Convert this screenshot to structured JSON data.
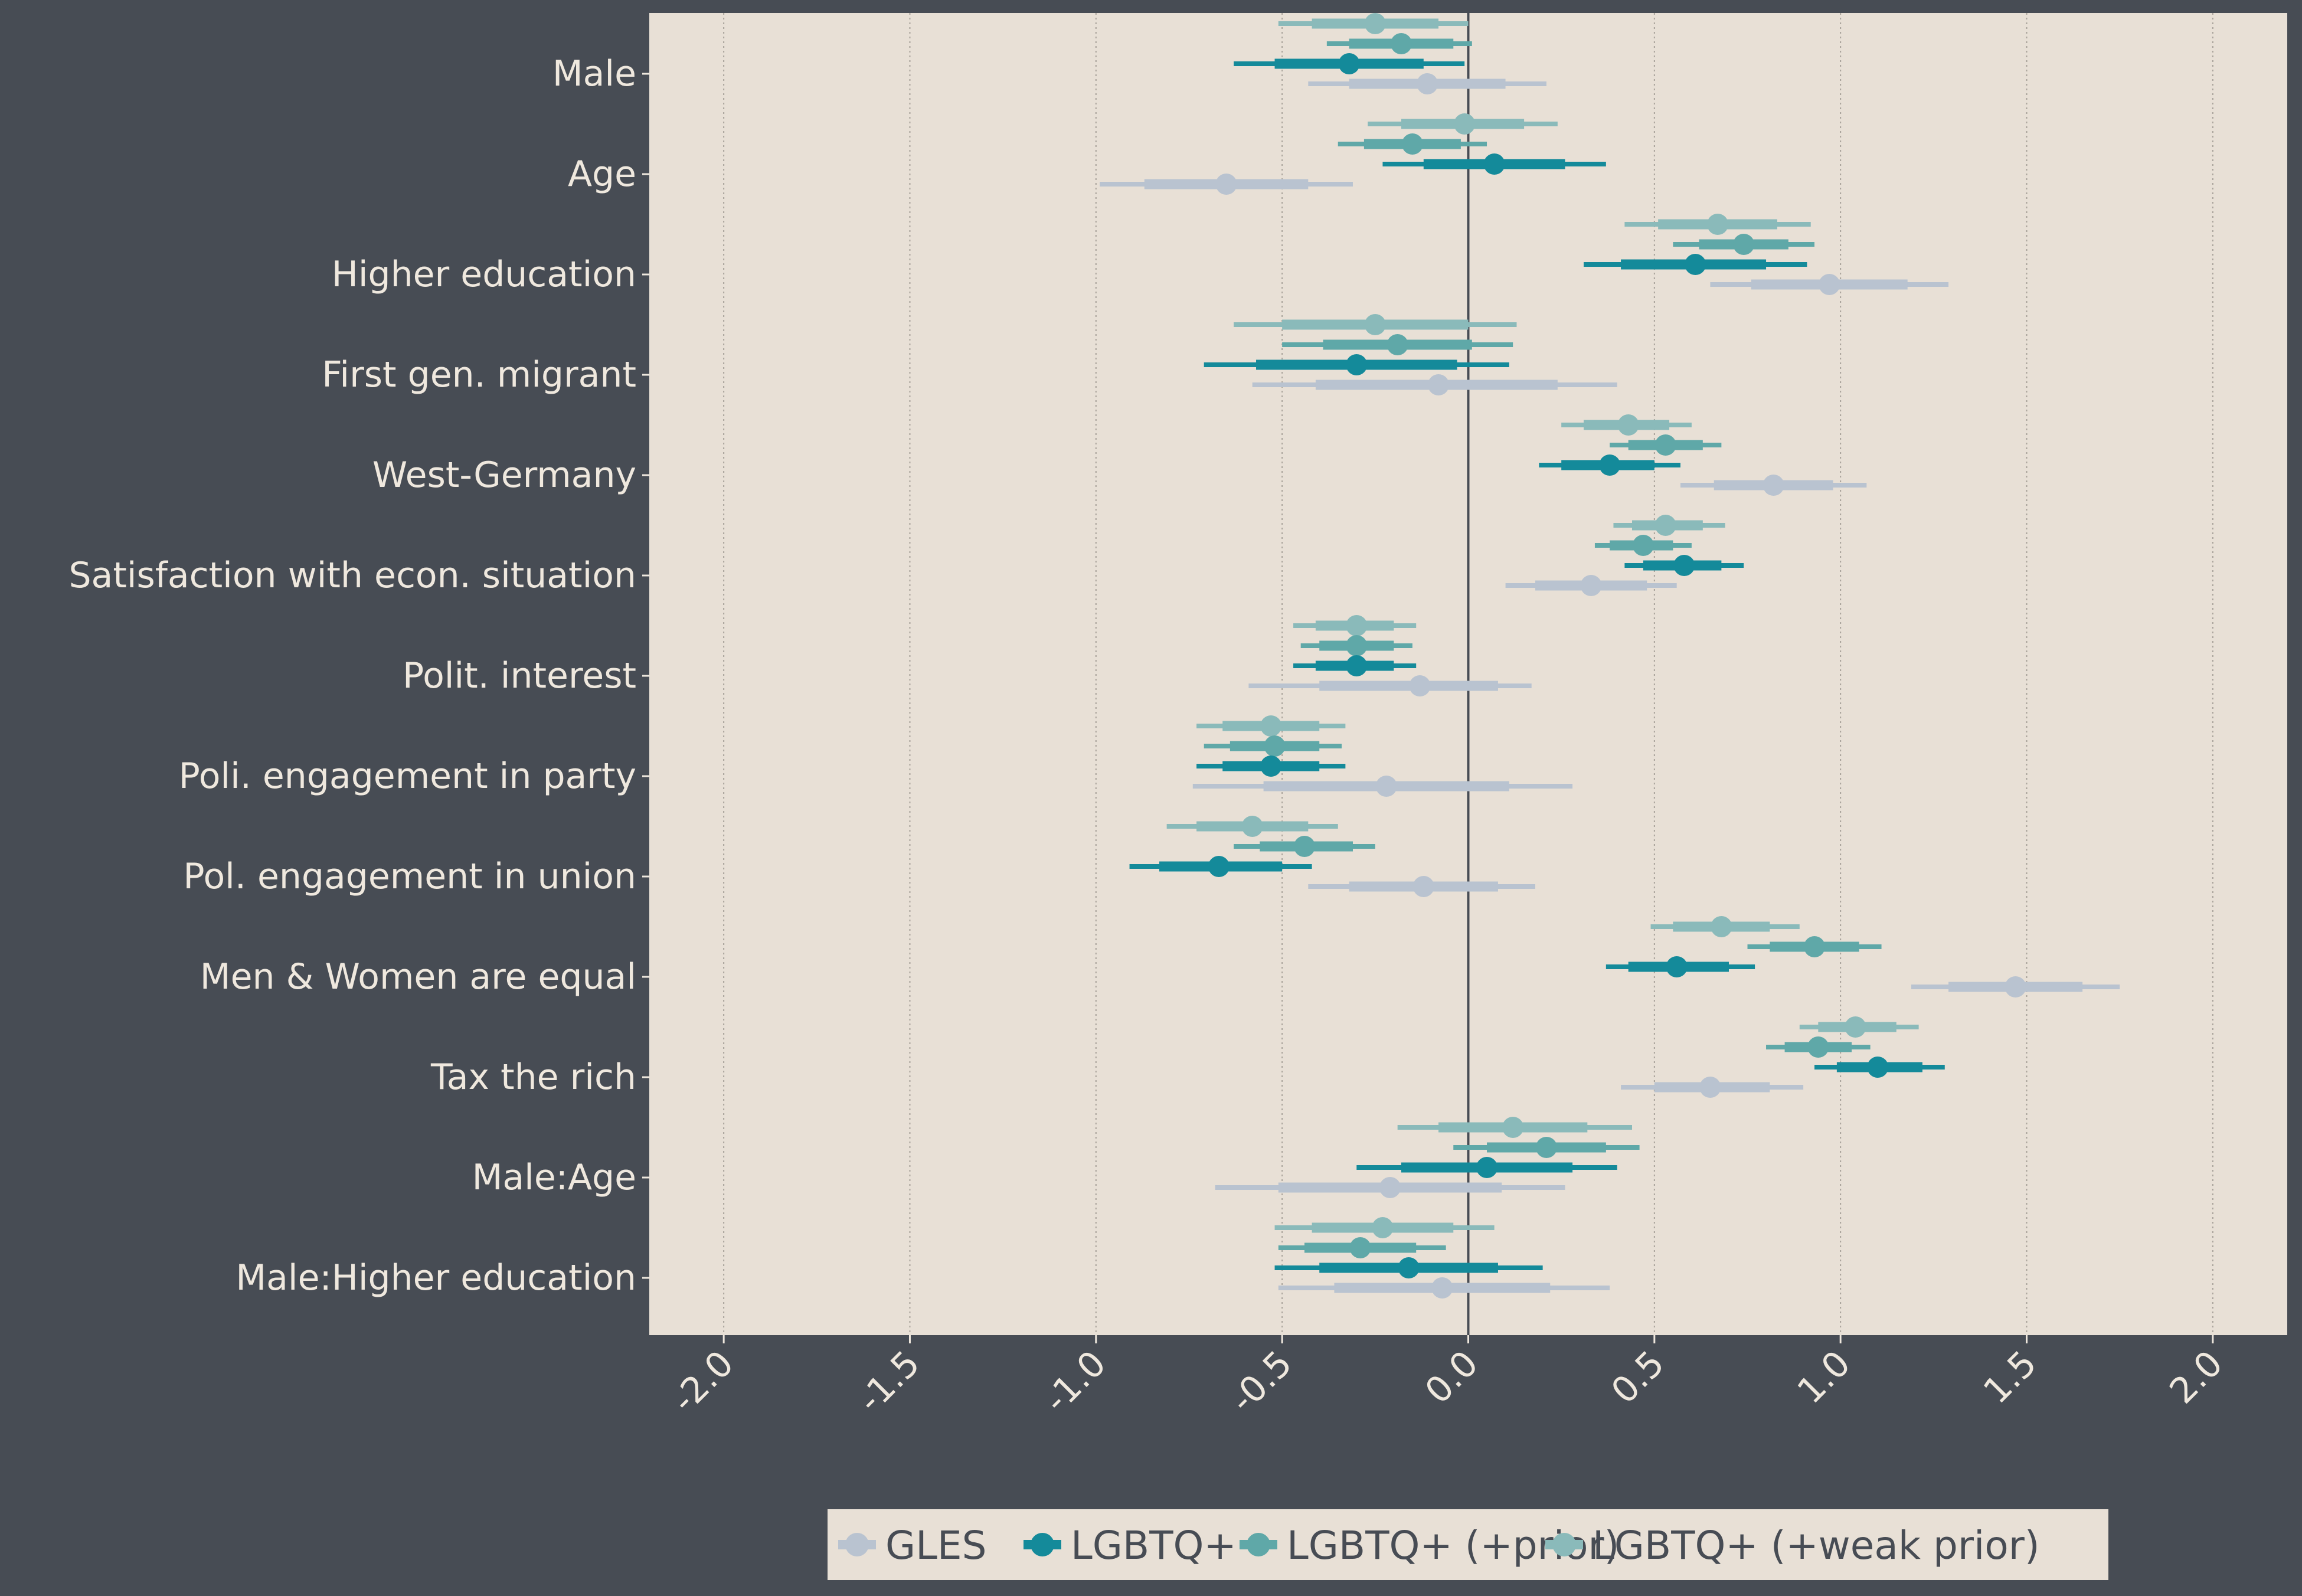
{
  "chart_data": {
    "type": "forest",
    "title": "",
    "xlabel": "",
    "ylabel": "",
    "xlim": [
      -2.2,
      2.2
    ],
    "x_ticks": [
      -2.0,
      -1.5,
      -1.0,
      -0.5,
      0.0,
      0.5,
      1.0,
      1.5,
      2.0
    ],
    "x_tick_labels": [
      "-2.0",
      "-1.5",
      "-1.0",
      "-0.5",
      "0.0",
      "0.5",
      "1.0",
      "1.5",
      "2.0"
    ],
    "grid": "vertical dotted",
    "reference_line": 0.0,
    "legend_position": "bottom",
    "categories": [
      "Male",
      "Age",
      "Higher education",
      "First gen. migrant",
      "West-Germany",
      "Satisfaction with econ. situation",
      "Polit. interest",
      "Poli. engagement in party",
      "Pol. engagement in union",
      "Men & Women are equal",
      "Tax the rich",
      "Male:Age",
      "Male:Higher education"
    ],
    "series": [
      {
        "name": "LGBTQ+ (+weak prior)",
        "color": "#8ababa",
        "estimates": [
          {
            "est": -0.25,
            "inner": [
              -0.42,
              -0.08
            ],
            "outer": [
              -0.51,
              0.0
            ]
          },
          {
            "est": -0.01,
            "inner": [
              -0.18,
              0.15
            ],
            "outer": [
              -0.27,
              0.24
            ]
          },
          {
            "est": 0.67,
            "inner": [
              0.51,
              0.83
            ],
            "outer": [
              0.42,
              0.92
            ]
          },
          {
            "est": -0.25,
            "inner": [
              -0.5,
              0.0
            ],
            "outer": [
              -0.63,
              0.13
            ]
          },
          {
            "est": 0.43,
            "inner": [
              0.31,
              0.54
            ],
            "outer": [
              0.25,
              0.6
            ]
          },
          {
            "est": 0.53,
            "inner": [
              0.44,
              0.63
            ],
            "outer": [
              0.39,
              0.69
            ]
          },
          {
            "est": -0.3,
            "inner": [
              -0.41,
              -0.2
            ],
            "outer": [
              -0.47,
              -0.14
            ]
          },
          {
            "est": -0.53,
            "inner": [
              -0.66,
              -0.4
            ],
            "outer": [
              -0.73,
              -0.33
            ]
          },
          {
            "est": -0.58,
            "inner": [
              -0.73,
              -0.43
            ],
            "outer": [
              -0.81,
              -0.35
            ]
          },
          {
            "est": 0.68,
            "inner": [
              0.55,
              0.81
            ],
            "outer": [
              0.49,
              0.89
            ]
          },
          {
            "est": 1.04,
            "inner": [
              0.94,
              1.15
            ],
            "outer": [
              0.89,
              1.21
            ]
          },
          {
            "est": 0.12,
            "inner": [
              -0.08,
              0.32
            ],
            "outer": [
              -0.19,
              0.44
            ]
          },
          {
            "est": -0.23,
            "inner": [
              -0.42,
              -0.04
            ],
            "outer": [
              -0.52,
              0.07
            ]
          }
        ]
      },
      {
        "name": "LGBTQ+ (+prior)",
        "color": "#5fa8a8",
        "estimates": [
          {
            "est": -0.18,
            "inner": [
              -0.32,
              -0.04
            ],
            "outer": [
              -0.38,
              0.01
            ]
          },
          {
            "est": -0.15,
            "inner": [
              -0.28,
              -0.02
            ],
            "outer": [
              -0.35,
              0.05
            ]
          },
          {
            "est": 0.74,
            "inner": [
              0.62,
              0.86
            ],
            "outer": [
              0.55,
              0.93
            ]
          },
          {
            "est": -0.19,
            "inner": [
              -0.39,
              0.01
            ],
            "outer": [
              -0.5,
              0.12
            ]
          },
          {
            "est": 0.53,
            "inner": [
              0.43,
              0.63
            ],
            "outer": [
              0.38,
              0.68
            ]
          },
          {
            "est": 0.47,
            "inner": [
              0.38,
              0.55
            ],
            "outer": [
              0.34,
              0.6
            ]
          },
          {
            "est": -0.3,
            "inner": [
              -0.4,
              -0.2
            ],
            "outer": [
              -0.45,
              -0.15
            ]
          },
          {
            "est": -0.52,
            "inner": [
              -0.64,
              -0.4
            ],
            "outer": [
              -0.71,
              -0.34
            ]
          },
          {
            "est": -0.44,
            "inner": [
              -0.56,
              -0.31
            ],
            "outer": [
              -0.63,
              -0.25
            ]
          },
          {
            "est": 0.93,
            "inner": [
              0.81,
              1.05
            ],
            "outer": [
              0.75,
              1.11
            ]
          },
          {
            "est": 0.94,
            "inner": [
              0.85,
              1.03
            ],
            "outer": [
              0.8,
              1.08
            ]
          },
          {
            "est": 0.21,
            "inner": [
              0.05,
              0.37
            ],
            "outer": [
              -0.04,
              0.46
            ]
          },
          {
            "est": -0.29,
            "inner": [
              -0.44,
              -0.14
            ],
            "outer": [
              -0.51,
              -0.06
            ]
          }
        ]
      },
      {
        "name": "LGBTQ+",
        "color": "#148a9a",
        "estimates": [
          {
            "est": -0.32,
            "inner": [
              -0.52,
              -0.12
            ],
            "outer": [
              -0.63,
              -0.01
            ]
          },
          {
            "est": 0.07,
            "inner": [
              -0.12,
              0.26
            ],
            "outer": [
              -0.23,
              0.37
            ]
          },
          {
            "est": 0.61,
            "inner": [
              0.41,
              0.8
            ],
            "outer": [
              0.31,
              0.91
            ]
          },
          {
            "est": -0.3,
            "inner": [
              -0.57,
              -0.03
            ],
            "outer": [
              -0.71,
              0.11
            ]
          },
          {
            "est": 0.38,
            "inner": [
              0.25,
              0.5
            ],
            "outer": [
              0.19,
              0.57
            ]
          },
          {
            "est": 0.58,
            "inner": [
              0.47,
              0.68
            ],
            "outer": [
              0.42,
              0.74
            ]
          },
          {
            "est": -0.3,
            "inner": [
              -0.41,
              -0.2
            ],
            "outer": [
              -0.47,
              -0.14
            ]
          },
          {
            "est": -0.53,
            "inner": [
              -0.66,
              -0.4
            ],
            "outer": [
              -0.73,
              -0.33
            ]
          },
          {
            "est": -0.67,
            "inner": [
              -0.83,
              -0.5
            ],
            "outer": [
              -0.91,
              -0.42
            ]
          },
          {
            "est": 0.56,
            "inner": [
              0.43,
              0.7
            ],
            "outer": [
              0.37,
              0.77
            ]
          },
          {
            "est": 1.1,
            "inner": [
              0.99,
              1.22
            ],
            "outer": [
              0.93,
              1.28
            ]
          },
          {
            "est": 0.05,
            "inner": [
              -0.18,
              0.28
            ],
            "outer": [
              -0.3,
              0.4
            ]
          },
          {
            "est": -0.16,
            "inner": [
              -0.4,
              0.08
            ],
            "outer": [
              -0.52,
              0.2
            ]
          }
        ]
      },
      {
        "name": "GLES",
        "color": "#b9c3d0",
        "estimates": [
          {
            "est": -0.11,
            "inner": [
              -0.32,
              0.1
            ],
            "outer": [
              -0.43,
              0.21
            ]
          },
          {
            "est": -0.65,
            "inner": [
              -0.87,
              -0.43
            ],
            "outer": [
              -0.99,
              -0.31
            ]
          },
          {
            "est": 0.97,
            "inner": [
              0.76,
              1.18
            ],
            "outer": [
              0.65,
              1.29
            ]
          },
          {
            "est": -0.08,
            "inner": [
              -0.41,
              0.24
            ],
            "outer": [
              -0.58,
              0.4
            ]
          },
          {
            "est": 0.82,
            "inner": [
              0.66,
              0.98
            ],
            "outer": [
              0.57,
              1.07
            ]
          },
          {
            "est": 0.33,
            "inner": [
              0.18,
              0.48
            ],
            "outer": [
              0.1,
              0.56
            ]
          },
          {
            "est": -0.13,
            "inner": [
              -0.4,
              0.08
            ],
            "outer": [
              -0.59,
              0.17
            ]
          },
          {
            "est": -0.22,
            "inner": [
              -0.55,
              0.11
            ],
            "outer": [
              -0.74,
              0.28
            ]
          },
          {
            "est": -0.12,
            "inner": [
              -0.32,
              0.08
            ],
            "outer": [
              -0.43,
              0.18
            ]
          },
          {
            "est": 1.47,
            "inner": [
              1.29,
              1.65
            ],
            "outer": [
              1.19,
              1.75
            ]
          },
          {
            "est": 0.65,
            "inner": [
              0.5,
              0.81
            ],
            "outer": [
              0.41,
              0.9
            ]
          },
          {
            "est": -0.21,
            "inner": [
              -0.51,
              0.09
            ],
            "outer": [
              -0.68,
              0.26
            ]
          },
          {
            "est": -0.07,
            "inner": [
              -0.36,
              0.22
            ],
            "outer": [
              -0.51,
              0.38
            ]
          }
        ]
      }
    ],
    "legend": [
      {
        "name": "GLES",
        "color": "#b9c3d0"
      },
      {
        "name": "LGBTQ+",
        "color": "#148a9a"
      },
      {
        "name": "LGBTQ+ (+prior)",
        "color": "#5fa8a8"
      },
      {
        "name": "LGBTQ+ (+weak prior)",
        "color": "#8ababa"
      }
    ]
  },
  "colors": {
    "page_background": "#474c54",
    "panel_background": "#e8e0d6",
    "grid": "#a8a29a",
    "reference_line": "#474c54",
    "label_text": "#efe8de",
    "legend_background": "#e8e0d6",
    "legend_text": "#474c54"
  }
}
